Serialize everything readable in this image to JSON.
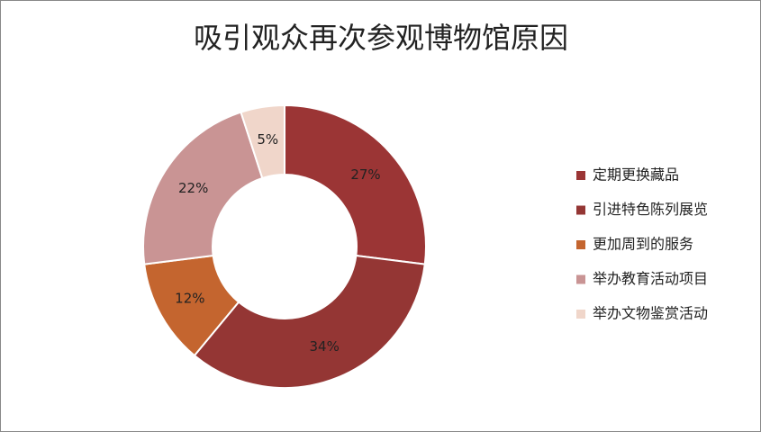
{
  "chart_data": {
    "type": "donut",
    "title": "吸引观众再次参观博物馆原因",
    "categories": [
      "定期更换藏品",
      "引进特色陈列展览",
      "更加周到的服务",
      "举办教育活动项目",
      "举办文物鉴赏活动"
    ],
    "values": [
      27,
      34,
      12,
      22,
      5
    ],
    "value_labels": [
      "27%",
      "34%",
      "12%",
      "22%",
      "5%"
    ],
    "colors": [
      "#9b3535",
      "#943634",
      "#c4652f",
      "#c99494",
      "#f0d6ca"
    ],
    "legend": "right"
  }
}
